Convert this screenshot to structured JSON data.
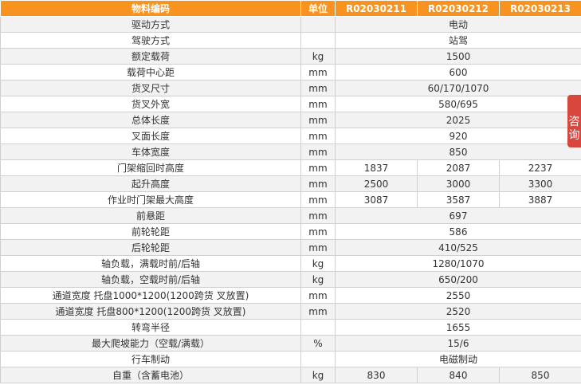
{
  "table": {
    "header": [
      "物料编码",
      "单位",
      "R02030211",
      "R02030212",
      "R02030213"
    ],
    "rows": [
      {
        "label": "驱动方式",
        "values": [
          "电动"
        ]
      },
      {
        "label": "驾驶方式",
        "values": [
          "站驾"
        ]
      },
      {
        "label": "额定载荷",
        "unit": "kg",
        "values": [
          "1500"
        ]
      },
      {
        "label": "载荷中心距",
        "unit": "mm",
        "values": [
          "600"
        ]
      },
      {
        "label": "货叉尺寸",
        "unit": "mm",
        "values": [
          "60/170/1070"
        ]
      },
      {
        "label": "货叉外宽",
        "unit": "mm",
        "values": [
          "580/695"
        ]
      },
      {
        "label": "总体长度",
        "unit": "mm",
        "values": [
          "2025"
        ]
      },
      {
        "label": "叉面长度",
        "unit": "mm",
        "values": [
          "920"
        ]
      },
      {
        "label": "车体宽度",
        "unit": "mm",
        "values": [
          "850"
        ]
      },
      {
        "label": "门架缩回时高度",
        "unit": "mm",
        "values": [
          "1837",
          "2087",
          "2237"
        ]
      },
      {
        "label": "起升高度",
        "unit": "mm",
        "values": [
          "2500",
          "3000",
          "3300"
        ]
      },
      {
        "label": "作业时门架最大高度",
        "unit": "mm",
        "values": [
          "3087",
          "3587",
          "3887"
        ]
      },
      {
        "label": "前悬距",
        "unit": "mm",
        "values": [
          "697"
        ]
      },
      {
        "label": "前轮轮距",
        "unit": "mm",
        "values": [
          "586"
        ]
      },
      {
        "label": "后轮轮距",
        "unit": "mm",
        "values": [
          "410/525"
        ]
      },
      {
        "label": "轴负载，满载时前/后轴",
        "unit": "kg",
        "values": [
          "1280/1070"
        ]
      },
      {
        "label": "轴负载，空载时前/后轴",
        "unit": "kg",
        "values": [
          "650/200"
        ]
      },
      {
        "label": "通道宽度 托盘1000*1200(1200跨货 叉放置)",
        "unit": "mm",
        "values": [
          "2550"
        ]
      },
      {
        "label": "通道宽度 托盘800*1200(1200跨货 叉放置)",
        "unit": "mm",
        "values": [
          "2520"
        ]
      },
      {
        "label": "转弯半径",
        "values": [
          "1655"
        ]
      },
      {
        "label": "最大爬坡能力（空载/满载）",
        "unit": "%",
        "values": [
          "15/6"
        ]
      },
      {
        "label": "行车制动",
        "values": [
          "电磁制动"
        ]
      },
      {
        "label": "自重（含蓄电池）",
        "unit": "kg",
        "values": [
          "830",
          "840",
          "850"
        ]
      }
    ]
  },
  "float_tab": {
    "label": "咨询"
  }
}
